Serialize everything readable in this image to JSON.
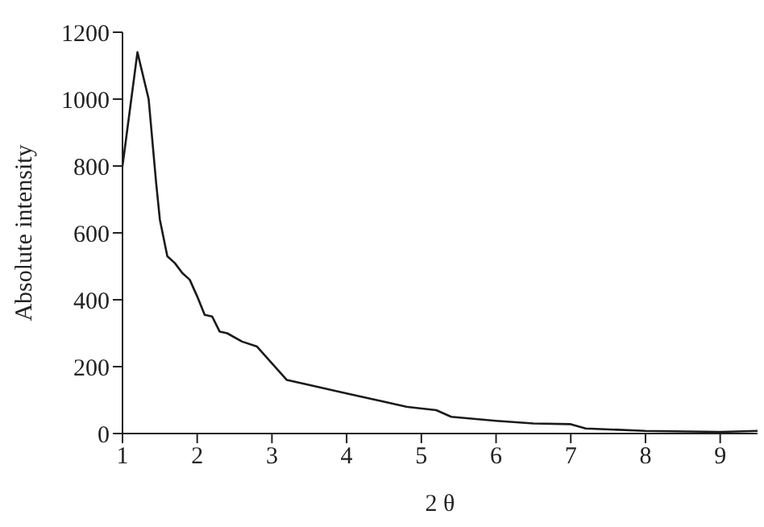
{
  "chart_data": {
    "type": "line",
    "xlabel": "2 θ",
    "ylabel": "Absolute intensity",
    "x": [
      1,
      1.2,
      1.35,
      1.45,
      1.5,
      1.6,
      1.7,
      1.8,
      1.9,
      2.0,
      2.1,
      2.2,
      2.3,
      2.4,
      2.6,
      2.8,
      3.0,
      3.2,
      3.5,
      4,
      4.5,
      4.8,
      5.2,
      5.4,
      6,
      6.5,
      7,
      7.2,
      8,
      9,
      9.5
    ],
    "series": [
      {
        "color": "#1a1a1a",
        "values": [
          800,
          1140,
          1000,
          750,
          640,
          530,
          510,
          480,
          460,
          410,
          355,
          350,
          305,
          300,
          275,
          260,
          210,
          160,
          145,
          120,
          95,
          80,
          70,
          50,
          38,
          30,
          28,
          15,
          8,
          5,
          8
        ]
      }
    ],
    "xlim": [
      1,
      9.5
    ],
    "xticks": [
      1,
      2,
      3,
      4,
      5,
      6,
      7,
      8,
      9
    ],
    "ylim": [
      0,
      1200
    ],
    "yticks": [
      0,
      200,
      400,
      600,
      800,
      1000,
      1200
    ],
    "grid": false,
    "legend": false,
    "marker": "none",
    "line_style": "solid"
  }
}
